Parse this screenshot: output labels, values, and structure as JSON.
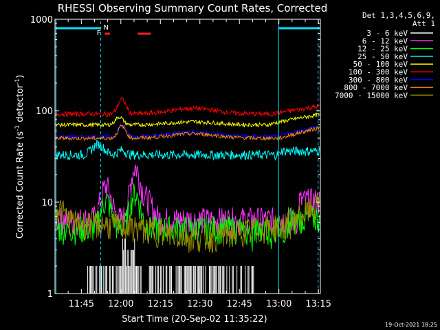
{
  "chart_data": {
    "type": "line",
    "title": "RHESSI Observing Summary Count Rates, Corrected",
    "xlabel": "Start Time (20-Sep-02 11:35:22)",
    "ylabel_main": "Corrected Count Rate (s",
    "ylabel_sup1": "-1",
    "ylabel_mid": " detector",
    "ylabel_sup2": "-1",
    "ylabel_end": ")",
    "yscale": "log",
    "ylim": [
      1,
      1000
    ],
    "xlim_minutes": [
      -0.37,
      100.37
    ],
    "x_ticks": [
      "11:45",
      "12:00",
      "12:15",
      "12:30",
      "12:45",
      "13:00",
      "13:15"
    ],
    "y_ticks": [
      "1",
      "10",
      "100",
      "1000"
    ],
    "legend_header": [
      "Det 1,3,4,5,6,9,",
      "Att 1"
    ],
    "legend_position": "right",
    "flags": {
      "F": "F",
      "N": "N"
    },
    "timestamp": "19-Oct-2021 18:25",
    "series": [
      {
        "name": "3 - 6 keV",
        "color": "#ffffff",
        "base": 1.6
      },
      {
        "name": "6 - 12 keV",
        "color": "#ff33ff",
        "base": 6.5
      },
      {
        "name": "12 - 25 keV",
        "color": "#00ff00",
        "base": 5.0
      },
      {
        "name": "25 - 50 keV",
        "color": "#00ffff",
        "base": 34
      },
      {
        "name": "50 - 100 keV",
        "color": "#ffff00",
        "base": 75
      },
      {
        "name": "100 - 300 keV",
        "color": "#ff0000",
        "base": 95
      },
      {
        "name": "300 - 800 keV",
        "color": "#0000ff",
        "base": 55
      },
      {
        "name": "800 - 7000 keV",
        "color": "#ff8800",
        "base": 52
      },
      {
        "name": "7000 - 15000 keV",
        "color": "#9a8a00",
        "base": 6.0
      }
    ]
  }
}
